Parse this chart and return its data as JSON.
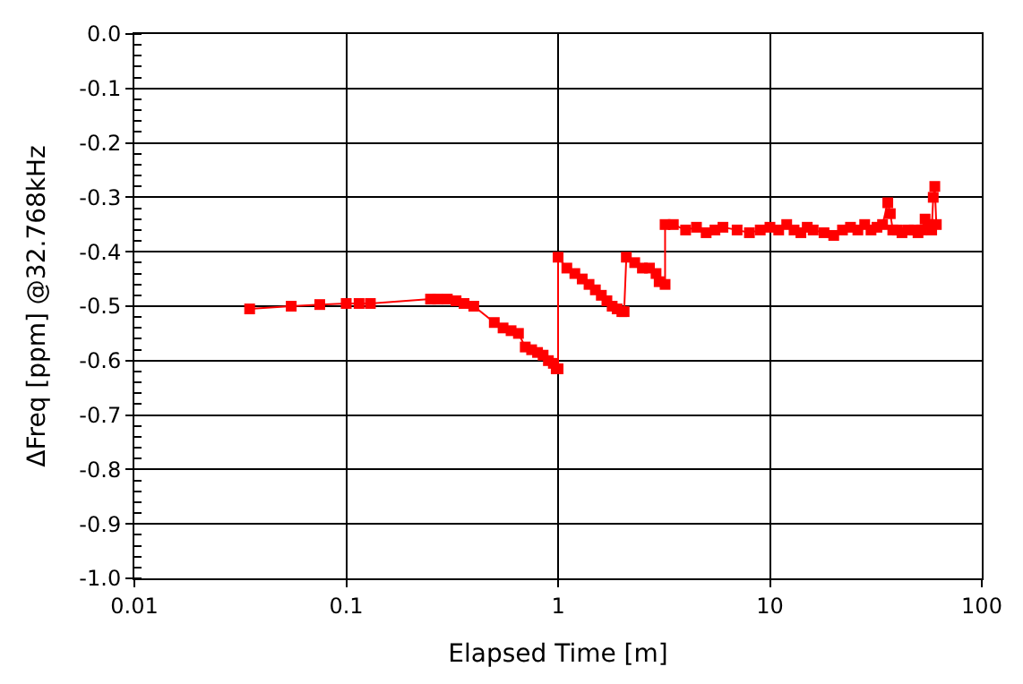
{
  "chart_data": {
    "type": "line",
    "xlabel": "Elapsed Time [m]",
    "ylabel": "ΔFreq [ppm] @32.768kHz",
    "log": "x",
    "grid": true,
    "marker": "square",
    "line_style": "solid",
    "xlim": [
      0.01,
      100
    ],
    "xticks": [
      {
        "value": 0.01,
        "label": "0.01"
      },
      {
        "value": 0.1,
        "label": "0.1"
      },
      {
        "value": 1,
        "label": "1"
      },
      {
        "value": 10,
        "label": "10"
      },
      {
        "value": 100,
        "label": "100"
      }
    ],
    "ylim": [
      -1.0,
      0.0
    ],
    "yticks": [
      {
        "value": -1.0,
        "label": "-1.0"
      },
      {
        "value": -0.9,
        "label": "-0.9"
      },
      {
        "value": -0.8,
        "label": "-0.8"
      },
      {
        "value": -0.7,
        "label": "-0.7"
      },
      {
        "value": -0.6,
        "label": "-0.6"
      },
      {
        "value": -0.5,
        "label": "-0.5"
      },
      {
        "value": -0.4,
        "label": "-0.4"
      },
      {
        "value": -0.3,
        "label": "-0.3"
      },
      {
        "value": -0.2,
        "label": "-0.2"
      },
      {
        "value": -0.1,
        "label": "-0.1"
      },
      {
        "value": 0.0,
        "label": "0.0"
      }
    ],
    "series": [
      {
        "color": "#ff0000",
        "x": [
          0.035,
          0.055,
          0.075,
          0.1,
          0.115,
          0.13,
          0.25,
          0.27,
          0.3,
          0.33,
          0.36,
          0.4,
          0.5,
          0.55,
          0.6,
          0.65,
          0.7,
          0.75,
          0.8,
          0.85,
          0.9,
          0.95,
          0.98,
          1.0,
          1.0,
          1.1,
          1.2,
          1.3,
          1.4,
          1.5,
          1.6,
          1.7,
          1.8,
          1.9,
          2.0,
          2.05,
          2.1,
          2.3,
          2.5,
          2.7,
          2.9,
          3.0,
          3.2,
          3.2,
          3.5,
          4.0,
          4.5,
          5.0,
          5.5,
          6.0,
          7.0,
          8.0,
          9.0,
          10,
          11,
          12,
          13,
          14,
          15,
          16,
          18,
          20,
          22,
          24,
          26,
          28,
          30,
          32,
          34,
          36,
          37,
          38,
          40,
          42,
          45,
          48,
          50,
          52,
          54,
          56,
          58,
          59,
          60,
          61
        ],
        "values": [
          -0.505,
          -0.5,
          -0.497,
          -0.495,
          -0.495,
          -0.495,
          -0.487,
          -0.487,
          -0.487,
          -0.49,
          -0.495,
          -0.5,
          -0.53,
          -0.54,
          -0.545,
          -0.55,
          -0.575,
          -0.58,
          -0.585,
          -0.59,
          -0.6,
          -0.605,
          -0.615,
          -0.615,
          -0.41,
          -0.43,
          -0.44,
          -0.45,
          -0.46,
          -0.47,
          -0.48,
          -0.49,
          -0.5,
          -0.505,
          -0.51,
          -0.51,
          -0.41,
          -0.42,
          -0.43,
          -0.43,
          -0.44,
          -0.455,
          -0.46,
          -0.35,
          -0.35,
          -0.36,
          -0.355,
          -0.365,
          -0.36,
          -0.355,
          -0.36,
          -0.365,
          -0.36,
          -0.355,
          -0.36,
          -0.35,
          -0.36,
          -0.365,
          -0.355,
          -0.36,
          -0.365,
          -0.37,
          -0.36,
          -0.355,
          -0.36,
          -0.35,
          -0.36,
          -0.355,
          -0.35,
          -0.31,
          -0.33,
          -0.36,
          -0.36,
          -0.365,
          -0.36,
          -0.36,
          -0.365,
          -0.36,
          -0.34,
          -0.35,
          -0.36,
          -0.3,
          -0.28,
          -0.35
        ]
      }
    ]
  }
}
